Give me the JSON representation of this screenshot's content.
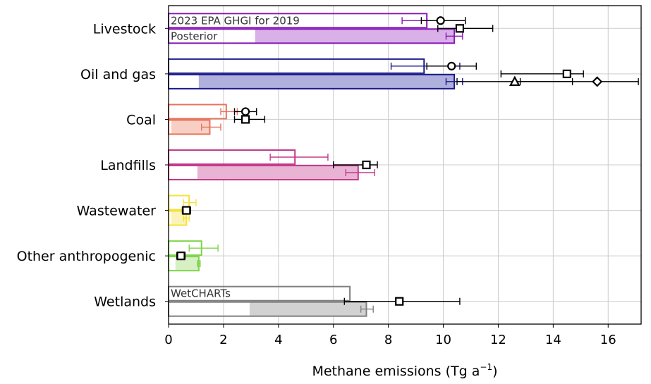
{
  "chart_data": {
    "type": "bar",
    "orientation": "horizontal",
    "xlabel": "Methane emissions (Tg a",
    "xlabel_sup": "−1",
    "xlabel_close": ")",
    "xlim": [
      0,
      17.2
    ],
    "xticks": [
      0,
      2,
      4,
      6,
      8,
      10,
      12,
      14,
      16
    ],
    "grid": true,
    "categories": [
      "Livestock",
      "Oil and gas",
      "Coal",
      "Landfills",
      "Wastewater",
      "Other anthropogenic",
      "Wetlands"
    ],
    "colors": [
      "#8a1ab8",
      "#1a1a8c",
      "#e8735a",
      "#c43a8a",
      "#f5e23c",
      "#7fd44a",
      "#808080"
    ],
    "fill_colors": [
      "#d9b0e8",
      "#b0b0dc",
      "#f7cfc4",
      "#e9b4d3",
      "#fbf3b8",
      "#d6f0c4",
      "#d2d2d2"
    ],
    "prior_label": "2023 EPA GHGI for 2019",
    "posterior_label": "Posterior",
    "wetland_prior_label": "WetCHARTs",
    "series": [
      {
        "name": "2023 EPA GHGI for 2019",
        "values": [
          9.4,
          9.3,
          2.1,
          4.6,
          0.75,
          1.2,
          6.6
        ],
        "err_low": [
          8.5,
          8.1,
          1.9,
          3.7,
          0.55,
          0.75,
          null
        ],
        "err_high": [
          10.8,
          10.6,
          2.5,
          5.8,
          1.0,
          1.8,
          null
        ]
      },
      {
        "name": "Posterior",
        "values": [
          10.4,
          10.4,
          1.5,
          6.9,
          0.65,
          1.1,
          7.2
        ],
        "fill_start": [
          3.15,
          1.1,
          0.1,
          1.05,
          0.1,
          0.25,
          2.95
        ],
        "err_low": [
          10.1,
          10.1,
          1.2,
          6.45,
          0.55,
          1.05,
          7.0
        ],
        "err_high": [
          10.7,
          10.7,
          1.9,
          7.5,
          0.75,
          1.15,
          7.45
        ]
      }
    ],
    "markers": [
      {
        "category": "Livestock",
        "shape": "circle",
        "x": 9.9,
        "err": [
          9.2,
          10.8
        ],
        "row": "prior"
      },
      {
        "category": "Livestock",
        "shape": "square",
        "x": 10.6,
        "err": [
          9.8,
          11.8
        ],
        "row": "mid"
      },
      {
        "category": "Oil and gas",
        "shape": "circle",
        "x": 10.3,
        "err": [
          9.4,
          11.2
        ],
        "row": "prior"
      },
      {
        "category": "Oil and gas",
        "shape": "square",
        "x": 14.5,
        "err": [
          12.1,
          15.1
        ],
        "row": "mid"
      },
      {
        "category": "Oil and gas",
        "shape": "triangle",
        "x": 12.6,
        "err": [
          10.5,
          14.7
        ],
        "row": "posterior"
      },
      {
        "category": "Oil and gas",
        "shape": "diamond",
        "x": 15.6,
        "err": [
          12.8,
          17.1
        ],
        "row": "posterior"
      },
      {
        "category": "Coal",
        "shape": "circle",
        "x": 2.8,
        "err": [
          2.4,
          3.2
        ],
        "row": "prior"
      },
      {
        "category": "Coal",
        "shape": "square",
        "x": 2.8,
        "err": [
          2.4,
          3.5
        ],
        "row": "mid"
      },
      {
        "category": "Landfills",
        "shape": "square",
        "x": 7.2,
        "err": [
          6.0,
          7.6
        ],
        "row": "mid"
      },
      {
        "category": "Wastewater",
        "shape": "square",
        "x": 0.65,
        "err": [
          0.5,
          0.8
        ],
        "row": "mid"
      },
      {
        "category": "Other anthropogenic",
        "shape": "square",
        "x": 0.45,
        "err": [
          0.3,
          0.6
        ],
        "row": "mid"
      },
      {
        "category": "Wetlands",
        "shape": "square",
        "x": 8.4,
        "err": [
          6.4,
          10.6
        ],
        "row": "mid"
      }
    ]
  }
}
